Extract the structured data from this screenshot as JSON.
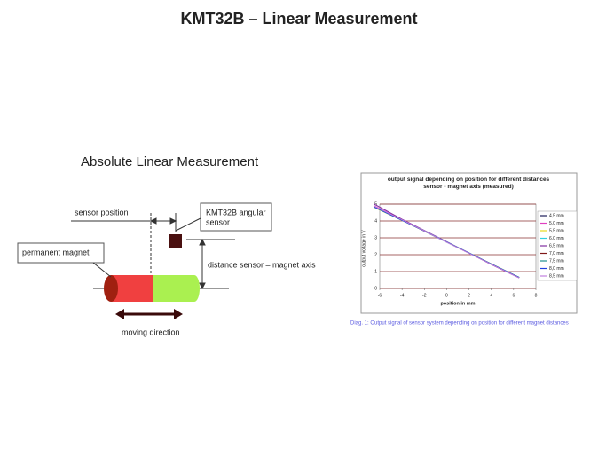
{
  "title": "KMT32B – Linear Measurement",
  "subtitle": "Absolute Linear Measurement",
  "diagram": {
    "sensor_position": "sensor position",
    "sensor_label": [
      "KMT32B angular",
      "sensor"
    ],
    "magnet_label": "permanent magnet",
    "distance_label": "distance sensor – magnet axis",
    "moving_label": "moving direction"
  },
  "chart_data": {
    "type": "line",
    "title": "output signal depending on position for different distances sensor - magnet axis (measured)",
    "x_label": "position in mm",
    "y_label": "output voltage in V",
    "x": [
      -6.5,
      -4,
      -2,
      0,
      2,
      4,
      6.5
    ],
    "xlim": [
      -6,
      8
    ],
    "xticks": [
      -6,
      -4,
      -2,
      0,
      2,
      4,
      6,
      8
    ],
    "ylim": [
      0,
      5
    ],
    "yticks": [
      0,
      1,
      2,
      3,
      4,
      5
    ],
    "grid": true,
    "legend": "right",
    "series": [
      {
        "name": "4,5 mm",
        "color": "#1f1f5a",
        "values": [
          4.85,
          4.05,
          3.4,
          2.75,
          2.1,
          1.45,
          0.65
        ]
      },
      {
        "name": "5,0 mm",
        "color": "#e040c0",
        "values": [
          4.9,
          4.08,
          3.42,
          2.76,
          2.1,
          1.44,
          0.64
        ]
      },
      {
        "name": "5,5 mm",
        "color": "#e8d820",
        "values": [
          4.8,
          4.03,
          3.39,
          2.75,
          2.11,
          1.46,
          0.66
        ]
      },
      {
        "name": "6,0 mm",
        "color": "#30d0e0",
        "values": [
          4.82,
          4.04,
          3.4,
          2.74,
          2.1,
          1.45,
          0.65
        ]
      },
      {
        "name": "6,5 mm",
        "color": "#8030a0",
        "values": [
          5.0,
          4.1,
          3.44,
          2.77,
          2.1,
          1.42,
          0.62
        ]
      },
      {
        "name": "7,0 mm",
        "color": "#801818",
        "values": [
          4.86,
          4.06,
          3.4,
          2.75,
          2.09,
          1.44,
          0.64
        ]
      },
      {
        "name": "7,5 mm",
        "color": "#209090",
        "values": [
          4.84,
          4.05,
          3.41,
          2.76,
          2.1,
          1.45,
          0.66
        ]
      },
      {
        "name": "8,0 mm",
        "color": "#2040e0",
        "values": [
          4.83,
          4.04,
          3.4,
          2.75,
          2.1,
          1.45,
          0.65
        ]
      },
      {
        "name": "8,5 mm",
        "color": "#c080e0",
        "values": [
          4.88,
          4.07,
          3.41,
          2.74,
          2.08,
          1.43,
          0.63
        ]
      }
    ]
  },
  "caption": "Diag. 1: Output signal of sensor system depending on position for different magnet distances"
}
